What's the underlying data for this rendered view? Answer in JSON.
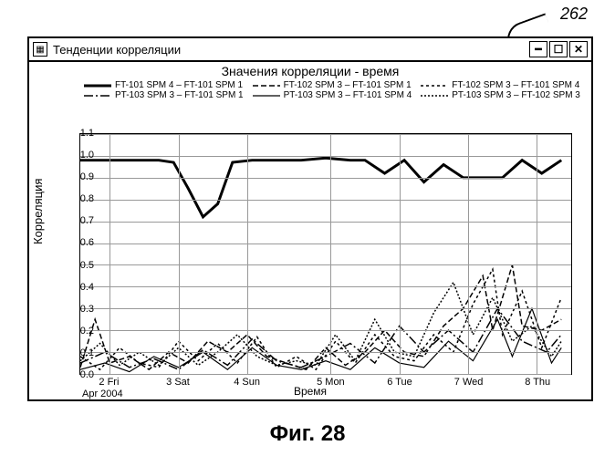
{
  "figure_label": "262",
  "window_title": "Тенденции корреляции",
  "caption": "Фиг. 28",
  "chart": {
    "title": "Значения корреляции - время",
    "ylabel": "Корреляция",
    "xlabel": "Время",
    "x_sublabel": "Apr 2004",
    "ylim": [
      0.0,
      1.1
    ],
    "yticks": [
      0.0,
      0.1,
      0.2,
      0.3,
      0.4,
      0.5,
      0.6,
      0.7,
      0.8,
      0.9,
      1.0,
      1.1
    ],
    "x_categories": [
      "2 Fri",
      "3 Sat",
      "4 Sun",
      "5 Mon",
      "6 Tue",
      "7 Wed",
      "8 Thu"
    ],
    "x_positions": [
      0.06,
      0.2,
      0.34,
      0.51,
      0.65,
      0.79,
      0.93
    ],
    "grid_color": "#999999",
    "background_color": "#ffffff",
    "legend": [
      {
        "label": "FT-101 SPM 4  –  FT-101 SPM 1",
        "dash": "",
        "width": 3
      },
      {
        "label": "FT-102 SPM 3  –  FT-101 SPM 1",
        "dash": "6,3",
        "width": 1.5
      },
      {
        "label": "FT-102 SPM 3  –  FT-101 SPM 4",
        "dash": "3,3",
        "width": 1.5
      },
      {
        "label": "PT-103 SPM 3  –  FT-101 SPM 1",
        "dash": "10,3,2,3",
        "width": 1.5
      },
      {
        "label": "PT-103 SPM 3  –  FT-101 SPM 4",
        "dash": "",
        "width": 1.2
      },
      {
        "label": "PT-103 SPM 3  –  FT-102 SPM 3",
        "dash": "2,2",
        "width": 1.5
      }
    ],
    "series": [
      {
        "name": "s1",
        "dash": "",
        "width": 3,
        "xy": [
          [
            0.0,
            0.98
          ],
          [
            0.04,
            0.98
          ],
          [
            0.08,
            0.98
          ],
          [
            0.12,
            0.98
          ],
          [
            0.16,
            0.98
          ],
          [
            0.19,
            0.97
          ],
          [
            0.22,
            0.85
          ],
          [
            0.25,
            0.72
          ],
          [
            0.28,
            0.78
          ],
          [
            0.31,
            0.97
          ],
          [
            0.35,
            0.98
          ],
          [
            0.45,
            0.98
          ],
          [
            0.5,
            0.99
          ],
          [
            0.55,
            0.98
          ],
          [
            0.58,
            0.98
          ],
          [
            0.62,
            0.92
          ],
          [
            0.66,
            0.98
          ],
          [
            0.7,
            0.88
          ],
          [
            0.74,
            0.96
          ],
          [
            0.78,
            0.9
          ],
          [
            0.82,
            0.9
          ],
          [
            0.86,
            0.9
          ],
          [
            0.9,
            0.98
          ],
          [
            0.94,
            0.92
          ],
          [
            0.98,
            0.98
          ]
        ]
      },
      {
        "name": "s2",
        "dash": "6,3",
        "width": 1.5,
        "xy": [
          [
            0.0,
            0.03
          ],
          [
            0.03,
            0.25
          ],
          [
            0.06,
            0.05
          ],
          [
            0.1,
            0.08
          ],
          [
            0.14,
            0.02
          ],
          [
            0.18,
            0.1
          ],
          [
            0.22,
            0.05
          ],
          [
            0.26,
            0.15
          ],
          [
            0.3,
            0.1
          ],
          [
            0.34,
            0.18
          ],
          [
            0.38,
            0.08
          ],
          [
            0.42,
            0.05
          ],
          [
            0.46,
            0.02
          ],
          [
            0.5,
            0.12
          ],
          [
            0.54,
            0.04
          ],
          [
            0.58,
            0.1
          ],
          [
            0.62,
            0.2
          ],
          [
            0.66,
            0.1
          ],
          [
            0.7,
            0.08
          ],
          [
            0.74,
            0.22
          ],
          [
            0.78,
            0.3
          ],
          [
            0.82,
            0.45
          ],
          [
            0.84,
            0.2
          ],
          [
            0.88,
            0.5
          ],
          [
            0.9,
            0.22
          ],
          [
            0.94,
            0.2
          ],
          [
            0.98,
            0.25
          ]
        ]
      },
      {
        "name": "s3",
        "dash": "3,3",
        "width": 1.5,
        "xy": [
          [
            0.0,
            0.08
          ],
          [
            0.04,
            0.02
          ],
          [
            0.08,
            0.12
          ],
          [
            0.12,
            0.05
          ],
          [
            0.16,
            0.03
          ],
          [
            0.2,
            0.15
          ],
          [
            0.24,
            0.06
          ],
          [
            0.28,
            0.14
          ],
          [
            0.32,
            0.05
          ],
          [
            0.36,
            0.17
          ],
          [
            0.4,
            0.03
          ],
          [
            0.44,
            0.08
          ],
          [
            0.48,
            0.02
          ],
          [
            0.52,
            0.15
          ],
          [
            0.56,
            0.05
          ],
          [
            0.6,
            0.18
          ],
          [
            0.64,
            0.08
          ],
          [
            0.68,
            0.06
          ],
          [
            0.72,
            0.18
          ],
          [
            0.76,
            0.1
          ],
          [
            0.8,
            0.32
          ],
          [
            0.84,
            0.48
          ],
          [
            0.86,
            0.18
          ],
          [
            0.9,
            0.38
          ],
          [
            0.94,
            0.12
          ],
          [
            0.98,
            0.35
          ]
        ]
      },
      {
        "name": "s4",
        "dash": "10,3,2,3",
        "width": 1.5,
        "xy": [
          [
            0.0,
            0.05
          ],
          [
            0.05,
            0.1
          ],
          [
            0.1,
            0.03
          ],
          [
            0.15,
            0.07
          ],
          [
            0.2,
            0.02
          ],
          [
            0.25,
            0.11
          ],
          [
            0.3,
            0.04
          ],
          [
            0.35,
            0.16
          ],
          [
            0.4,
            0.06
          ],
          [
            0.45,
            0.03
          ],
          [
            0.5,
            0.08
          ],
          [
            0.55,
            0.14
          ],
          [
            0.6,
            0.05
          ],
          [
            0.65,
            0.22
          ],
          [
            0.7,
            0.1
          ],
          [
            0.75,
            0.2
          ],
          [
            0.8,
            0.1
          ],
          [
            0.85,
            0.3
          ],
          [
            0.9,
            0.15
          ],
          [
            0.95,
            0.1
          ],
          [
            0.98,
            0.18
          ]
        ]
      },
      {
        "name": "s5",
        "dash": "",
        "width": 1.2,
        "xy": [
          [
            0.0,
            0.02
          ],
          [
            0.05,
            0.05
          ],
          [
            0.1,
            0.01
          ],
          [
            0.15,
            0.08
          ],
          [
            0.2,
            0.03
          ],
          [
            0.25,
            0.1
          ],
          [
            0.3,
            0.02
          ],
          [
            0.35,
            0.12
          ],
          [
            0.4,
            0.04
          ],
          [
            0.45,
            0.02
          ],
          [
            0.5,
            0.06
          ],
          [
            0.55,
            0.02
          ],
          [
            0.6,
            0.12
          ],
          [
            0.65,
            0.05
          ],
          [
            0.7,
            0.03
          ],
          [
            0.75,
            0.15
          ],
          [
            0.8,
            0.06
          ],
          [
            0.85,
            0.25
          ],
          [
            0.88,
            0.08
          ],
          [
            0.92,
            0.3
          ],
          [
            0.96,
            0.05
          ],
          [
            0.98,
            0.12
          ]
        ]
      },
      {
        "name": "s6",
        "dash": "2,2",
        "width": 1.5,
        "xy": [
          [
            0.0,
            0.06
          ],
          [
            0.04,
            0.14
          ],
          [
            0.08,
            0.04
          ],
          [
            0.12,
            0.1
          ],
          [
            0.16,
            0.04
          ],
          [
            0.2,
            0.12
          ],
          [
            0.24,
            0.04
          ],
          [
            0.28,
            0.1
          ],
          [
            0.32,
            0.18
          ],
          [
            0.36,
            0.08
          ],
          [
            0.4,
            0.04
          ],
          [
            0.44,
            0.06
          ],
          [
            0.48,
            0.04
          ],
          [
            0.52,
            0.18
          ],
          [
            0.56,
            0.06
          ],
          [
            0.6,
            0.25
          ],
          [
            0.64,
            0.1
          ],
          [
            0.68,
            0.08
          ],
          [
            0.72,
            0.28
          ],
          [
            0.76,
            0.42
          ],
          [
            0.8,
            0.18
          ],
          [
            0.84,
            0.35
          ],
          [
            0.88,
            0.15
          ],
          [
            0.92,
            0.22
          ],
          [
            0.96,
            0.08
          ],
          [
            0.98,
            0.15
          ]
        ]
      }
    ]
  }
}
